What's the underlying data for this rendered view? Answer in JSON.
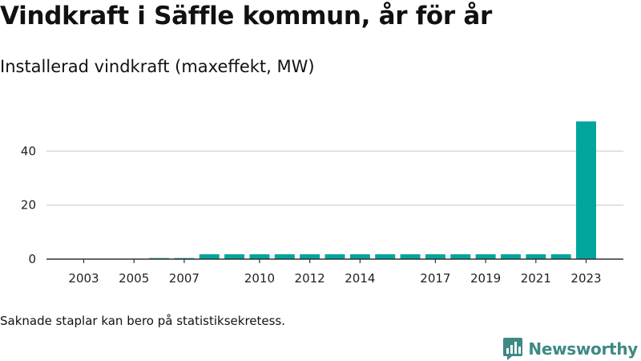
{
  "header": {
    "title": "Vindkraft i Säffle kommun, år för år",
    "subtitle": "Installerad vindkraft (maxeffekt, MW)"
  },
  "footer": {
    "note": "Saknade staplar kan bero på statistiksekretess.",
    "brand": "Newsworthy"
  },
  "colors": {
    "bar": "#00a59b",
    "grid": "#d9d9d9",
    "axis": "#333333",
    "brand": "#3d8a84"
  },
  "chart_data": {
    "type": "bar",
    "title": "Vindkraft i Säffle kommun, år för år",
    "subtitle": "Installerad vindkraft (maxeffekt, MW)",
    "xlabel": "",
    "ylabel": "",
    "categories": [
      "2003",
      "2004",
      "2005",
      "2006",
      "2007",
      "2008",
      "2009",
      "2010",
      "2011",
      "2012",
      "2013",
      "2014",
      "2015",
      "2016",
      "2017",
      "2018",
      "2019",
      "2020",
      "2021",
      "2022",
      "2023"
    ],
    "values": [
      0,
      0,
      0,
      0.4,
      0.4,
      1.8,
      1.8,
      1.8,
      1.8,
      1.8,
      1.8,
      1.8,
      1.8,
      1.8,
      1.8,
      1.8,
      1.8,
      1.8,
      1.8,
      1.8,
      51
    ],
    "x_tick_labels": [
      "2003",
      "2005",
      "2007",
      "2010",
      "2012",
      "2014",
      "2017",
      "2019",
      "2021",
      "2023"
    ],
    "y_ticks": [
      0,
      20,
      40
    ],
    "ylim": [
      0,
      52
    ],
    "grid": true,
    "legend": "none"
  }
}
